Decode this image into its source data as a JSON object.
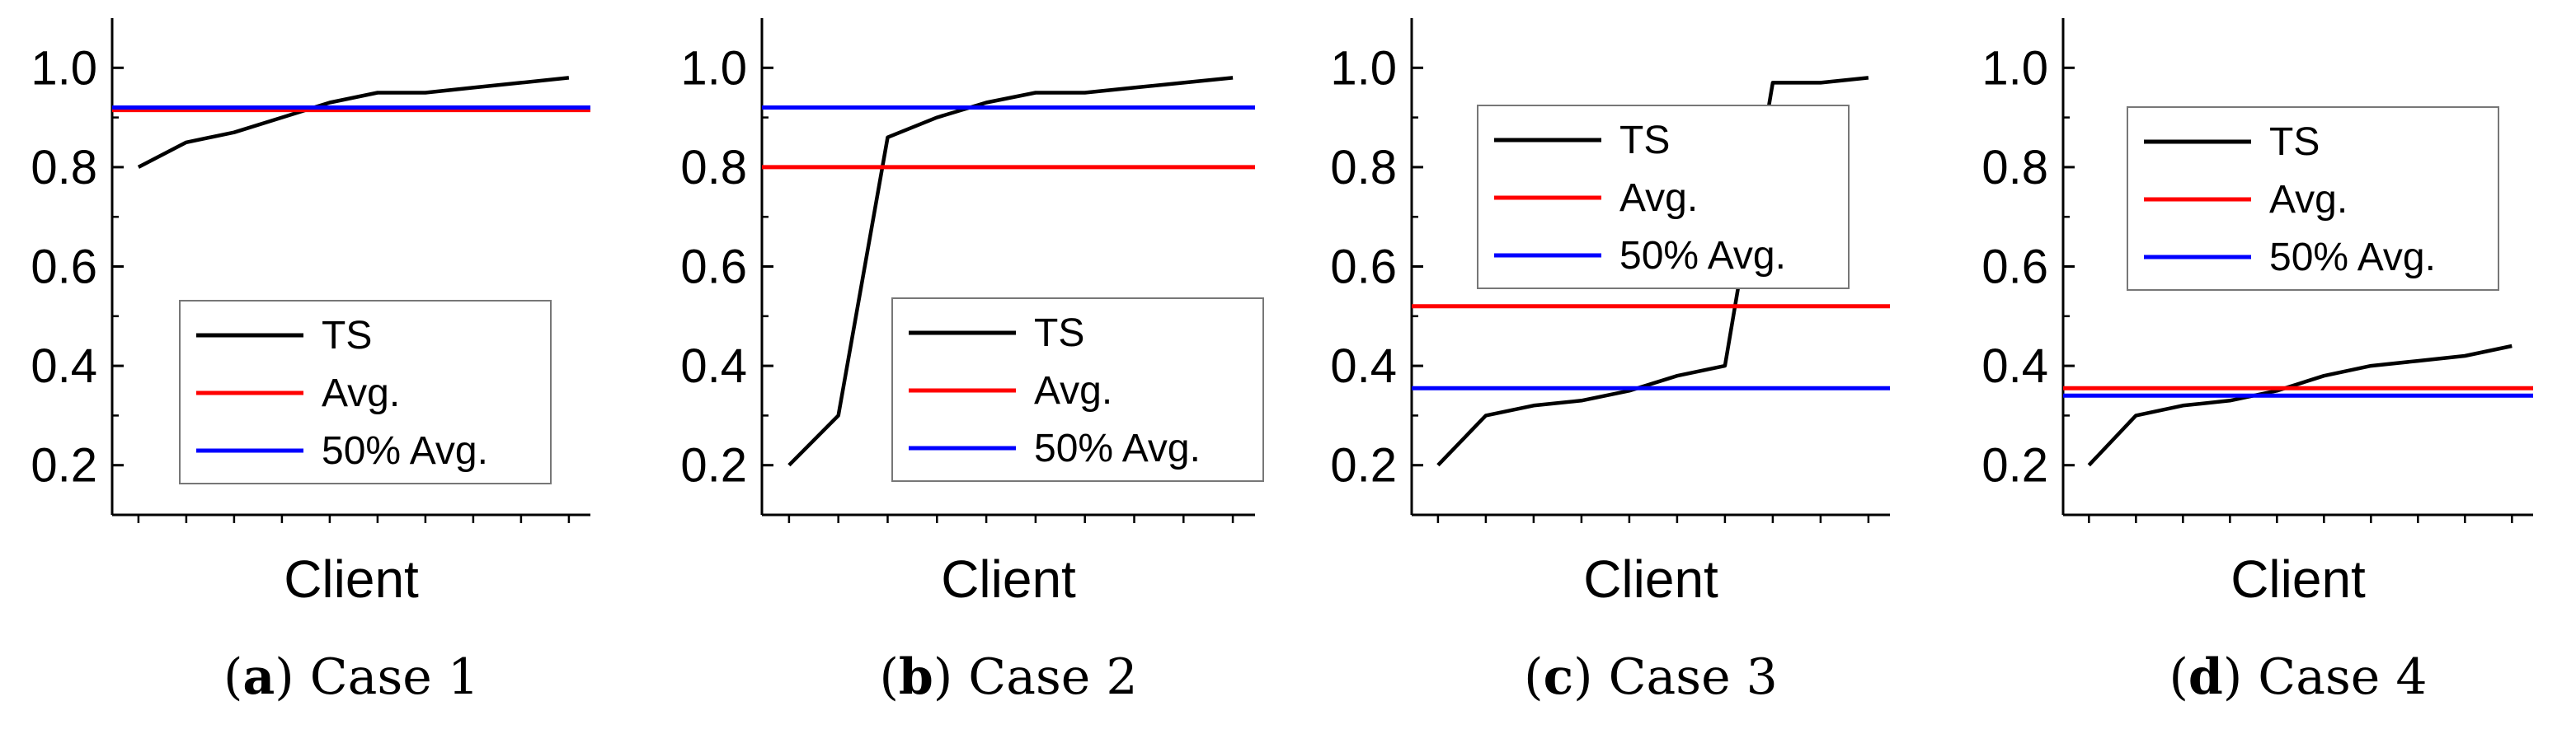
{
  "chart_data": [
    {
      "type": "line",
      "caption_letter": "a",
      "caption_title": "Case 1",
      "xlabel": "Client",
      "ylabel": "",
      "ylim": [
        0.1,
        1.1
      ],
      "yticks": [
        "0.2",
        "0.4",
        "0.6",
        "0.8",
        "1.0"
      ],
      "x": [
        1,
        2,
        3,
        4,
        5,
        6,
        7,
        8,
        9,
        10
      ],
      "series": [
        {
          "name": "TS",
          "color": "#000000",
          "values": [
            0.8,
            0.85,
            0.87,
            0.9,
            0.93,
            0.95,
            0.95,
            0.96,
            0.97,
            0.98
          ]
        },
        {
          "name": "Avg.",
          "color": "#ff0000",
          "values": [
            0.915,
            0.915,
            0.915,
            0.915,
            0.915,
            0.915,
            0.915,
            0.915,
            0.915,
            0.915
          ]
        },
        {
          "name": "50% Avg.",
          "color": "#0000ff",
          "values": [
            0.92,
            0.92,
            0.92,
            0.92,
            0.92,
            0.92,
            0.92,
            0.92,
            0.92,
            0.92
          ]
        }
      ],
      "legend_position": "bottom-center"
    },
    {
      "type": "line",
      "caption_letter": "b",
      "caption_title": "Case 2",
      "xlabel": "Client",
      "ylabel": "",
      "ylim": [
        0.1,
        1.1
      ],
      "yticks": [
        "0.2",
        "0.4",
        "0.6",
        "0.8",
        "1.0"
      ],
      "x": [
        1,
        2,
        3,
        4,
        5,
        6,
        7,
        8,
        9,
        10
      ],
      "series": [
        {
          "name": "TS",
          "color": "#000000",
          "values": [
            0.2,
            0.3,
            0.86,
            0.9,
            0.93,
            0.95,
            0.95,
            0.96,
            0.97,
            0.98
          ]
        },
        {
          "name": "Avg.",
          "color": "#ff0000",
          "values": [
            0.8,
            0.8,
            0.8,
            0.8,
            0.8,
            0.8,
            0.8,
            0.8,
            0.8,
            0.8
          ]
        },
        {
          "name": "50% Avg.",
          "color": "#0000ff",
          "values": [
            0.92,
            0.92,
            0.92,
            0.92,
            0.92,
            0.92,
            0.92,
            0.92,
            0.92,
            0.92
          ]
        }
      ],
      "legend_position": "bottom-right"
    },
    {
      "type": "line",
      "caption_letter": "c",
      "caption_title": "Case 3",
      "xlabel": "Client",
      "ylabel": "",
      "ylim": [
        0.1,
        1.1
      ],
      "yticks": [
        "0.2",
        "0.4",
        "0.6",
        "0.8",
        "1.0"
      ],
      "x": [
        1,
        2,
        3,
        4,
        5,
        6,
        7,
        8,
        9,
        10
      ],
      "series": [
        {
          "name": "TS",
          "color": "#000000",
          "values": [
            0.2,
            0.3,
            0.32,
            0.33,
            0.35,
            0.38,
            0.4,
            0.97,
            0.97,
            0.98
          ]
        },
        {
          "name": "Avg.",
          "color": "#ff0000",
          "values": [
            0.52,
            0.52,
            0.52,
            0.52,
            0.52,
            0.52,
            0.52,
            0.52,
            0.52,
            0.52
          ]
        },
        {
          "name": "50% Avg.",
          "color": "#0000ff",
          "values": [
            0.355,
            0.355,
            0.355,
            0.355,
            0.355,
            0.355,
            0.355,
            0.355,
            0.355,
            0.355
          ]
        }
      ],
      "legend_position": "top-left"
    },
    {
      "type": "line",
      "caption_letter": "d",
      "caption_title": "Case 4",
      "xlabel": "Client",
      "ylabel": "",
      "ylim": [
        0.1,
        1.1
      ],
      "yticks": [
        "0.2",
        "0.4",
        "0.6",
        "0.8",
        "1.0"
      ],
      "x": [
        1,
        2,
        3,
        4,
        5,
        6,
        7,
        8,
        9,
        10
      ],
      "series": [
        {
          "name": "TS",
          "color": "#000000",
          "values": [
            0.2,
            0.3,
            0.32,
            0.33,
            0.35,
            0.38,
            0.4,
            0.41,
            0.42,
            0.44
          ]
        },
        {
          "name": "Avg.",
          "color": "#ff0000",
          "values": [
            0.355,
            0.355,
            0.355,
            0.355,
            0.355,
            0.355,
            0.355,
            0.355,
            0.355,
            0.355
          ]
        },
        {
          "name": "50% Avg.",
          "color": "#0000ff",
          "values": [
            0.34,
            0.34,
            0.34,
            0.34,
            0.34,
            0.34,
            0.34,
            0.34,
            0.34,
            0.34
          ]
        }
      ],
      "legend_position": "top-center"
    }
  ]
}
